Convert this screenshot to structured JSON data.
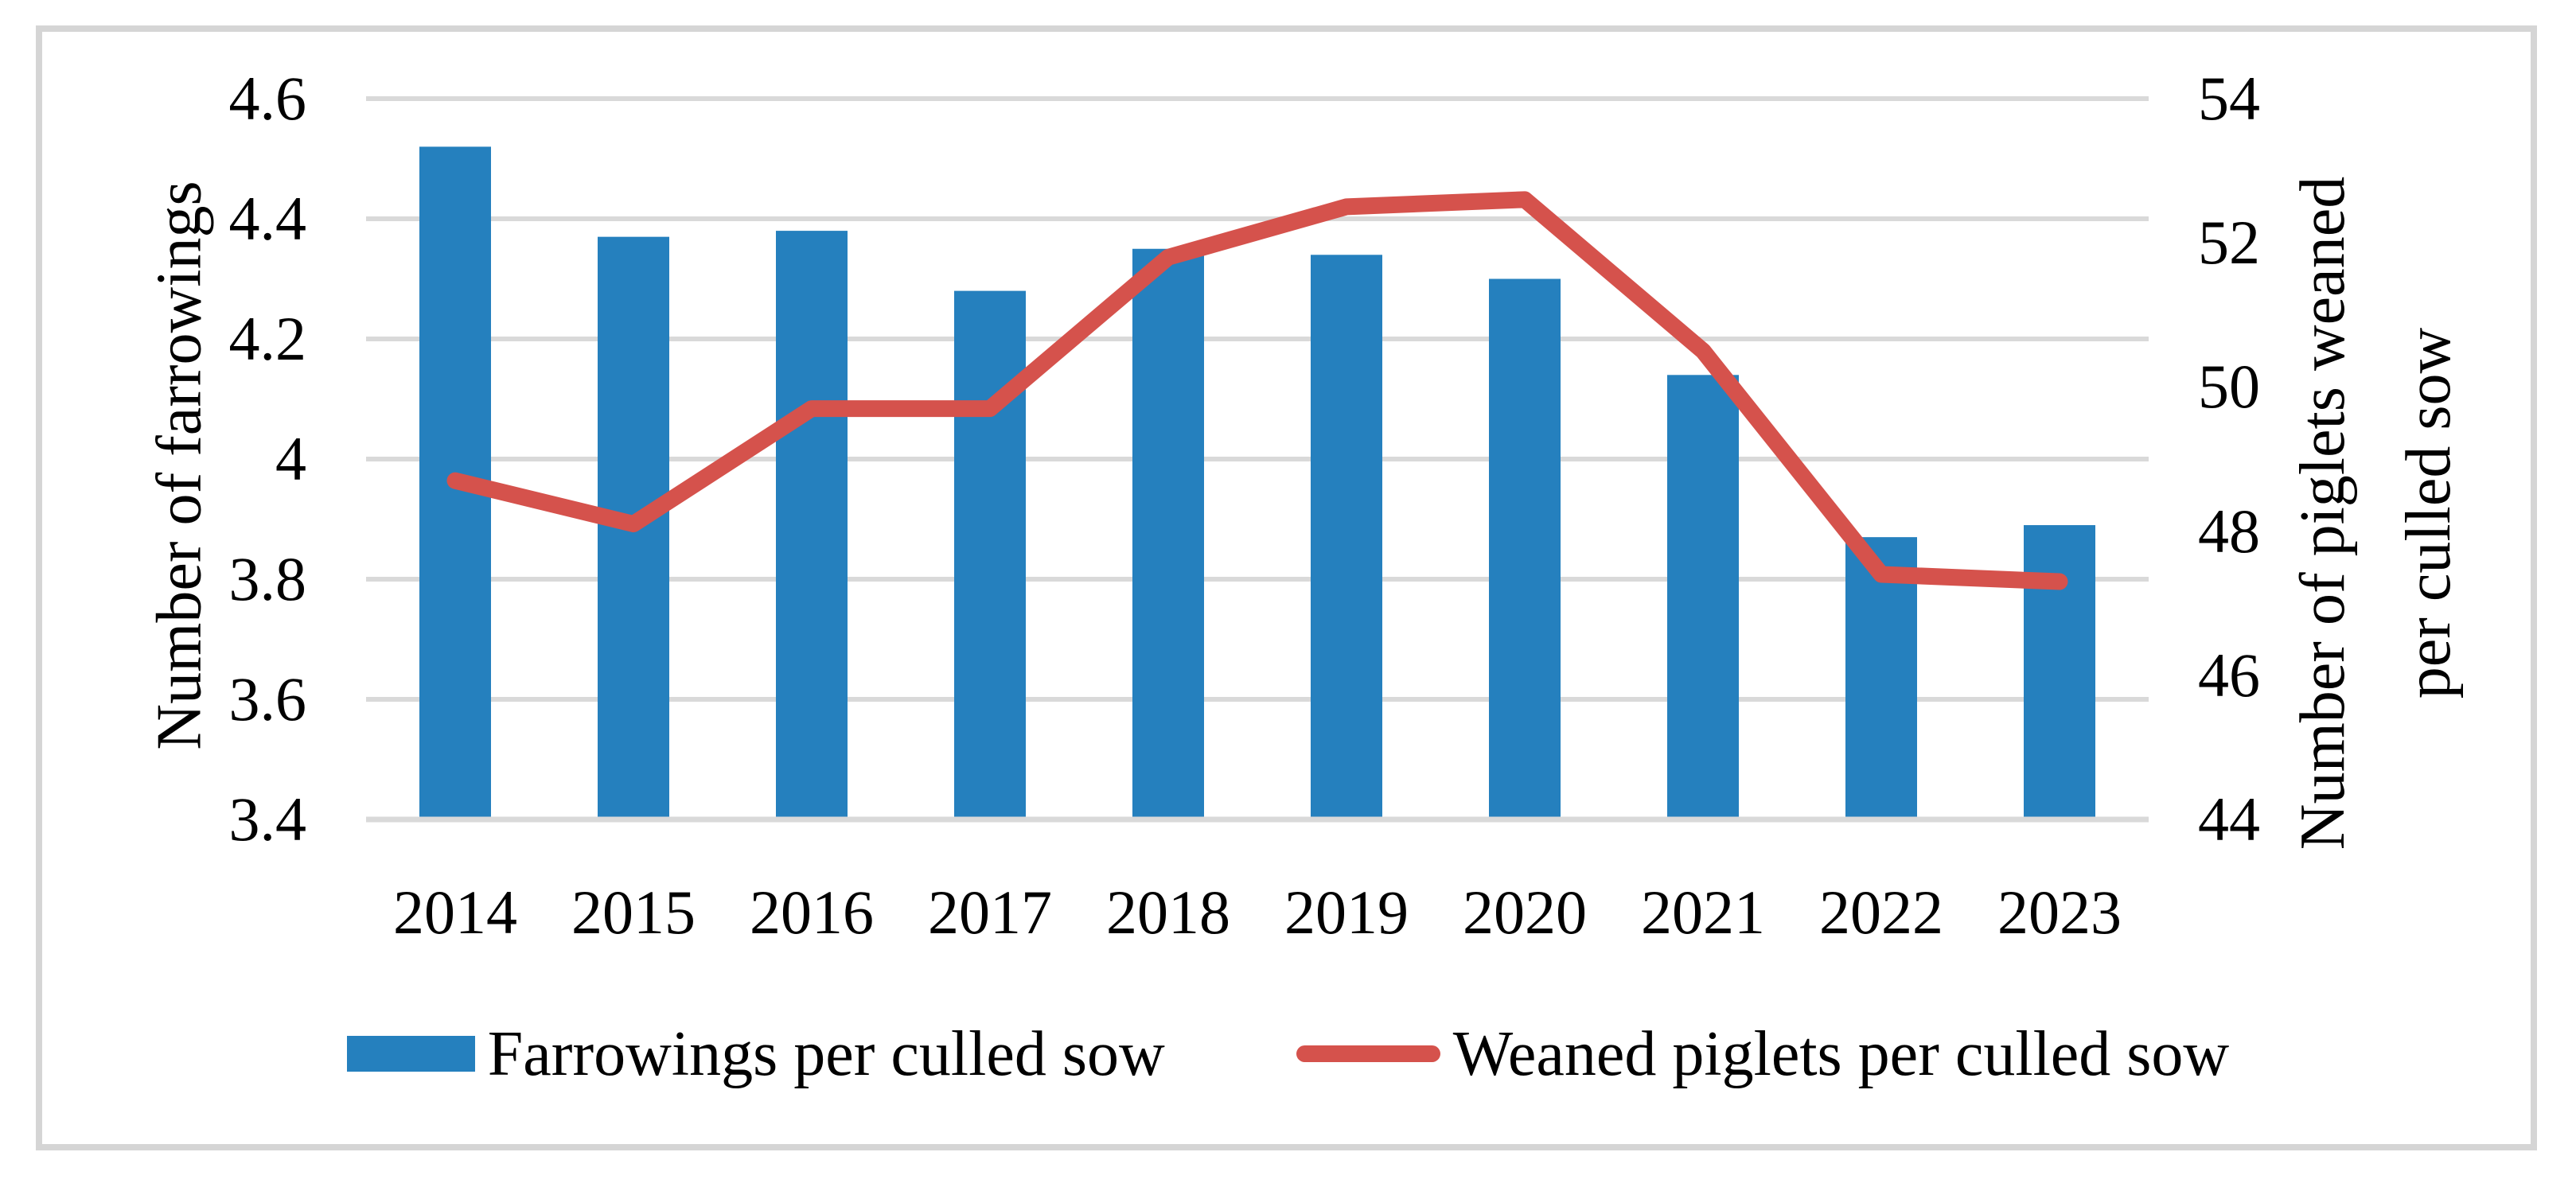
{
  "chart_data": {
    "type": "bar+line (dual axis combo)",
    "categories": [
      "2014",
      "2015",
      "2016",
      "2017",
      "2018",
      "2019",
      "2020",
      "2021",
      "2022",
      "2023"
    ],
    "series": [
      {
        "name": "Farrowings per culled sow",
        "type": "bar",
        "axis": "left",
        "color": "#2580BE",
        "values": [
          4.52,
          4.37,
          4.38,
          4.28,
          4.35,
          4.34,
          4.3,
          4.14,
          3.87,
          3.89
        ]
      },
      {
        "name": "Weaned piglets per culled sow",
        "type": "line",
        "axis": "right",
        "color": "#D5524C",
        "values": [
          48.7,
          48.1,
          49.7,
          49.7,
          51.8,
          52.5,
          52.6,
          50.5,
          47.4,
          47.3
        ]
      }
    ],
    "left_axis": {
      "title": "Number of farrowings",
      "min": 3.4,
      "max": 4.6,
      "tick_labels": [
        "4.6",
        "4.4",
        "4.2",
        "4",
        "3.8",
        "3.6",
        "3.4"
      ],
      "tick_values": [
        4.6,
        4.4,
        4.2,
        4.0,
        3.8,
        3.6,
        3.4
      ]
    },
    "right_axis": {
      "title_line1": "Number of piglets weaned",
      "title_line2": "per culled sow",
      "min": 44,
      "max": 54,
      "tick_labels": [
        "54",
        "52",
        "50",
        "48",
        "46",
        "44"
      ],
      "tick_values": [
        54,
        52,
        50,
        48,
        46,
        44
      ]
    },
    "grid": "on",
    "grid_color": "#D9D9D9",
    "legend_position": "bottom",
    "background_color": "#FFFFFF",
    "border_color": "#D5D5D5"
  }
}
